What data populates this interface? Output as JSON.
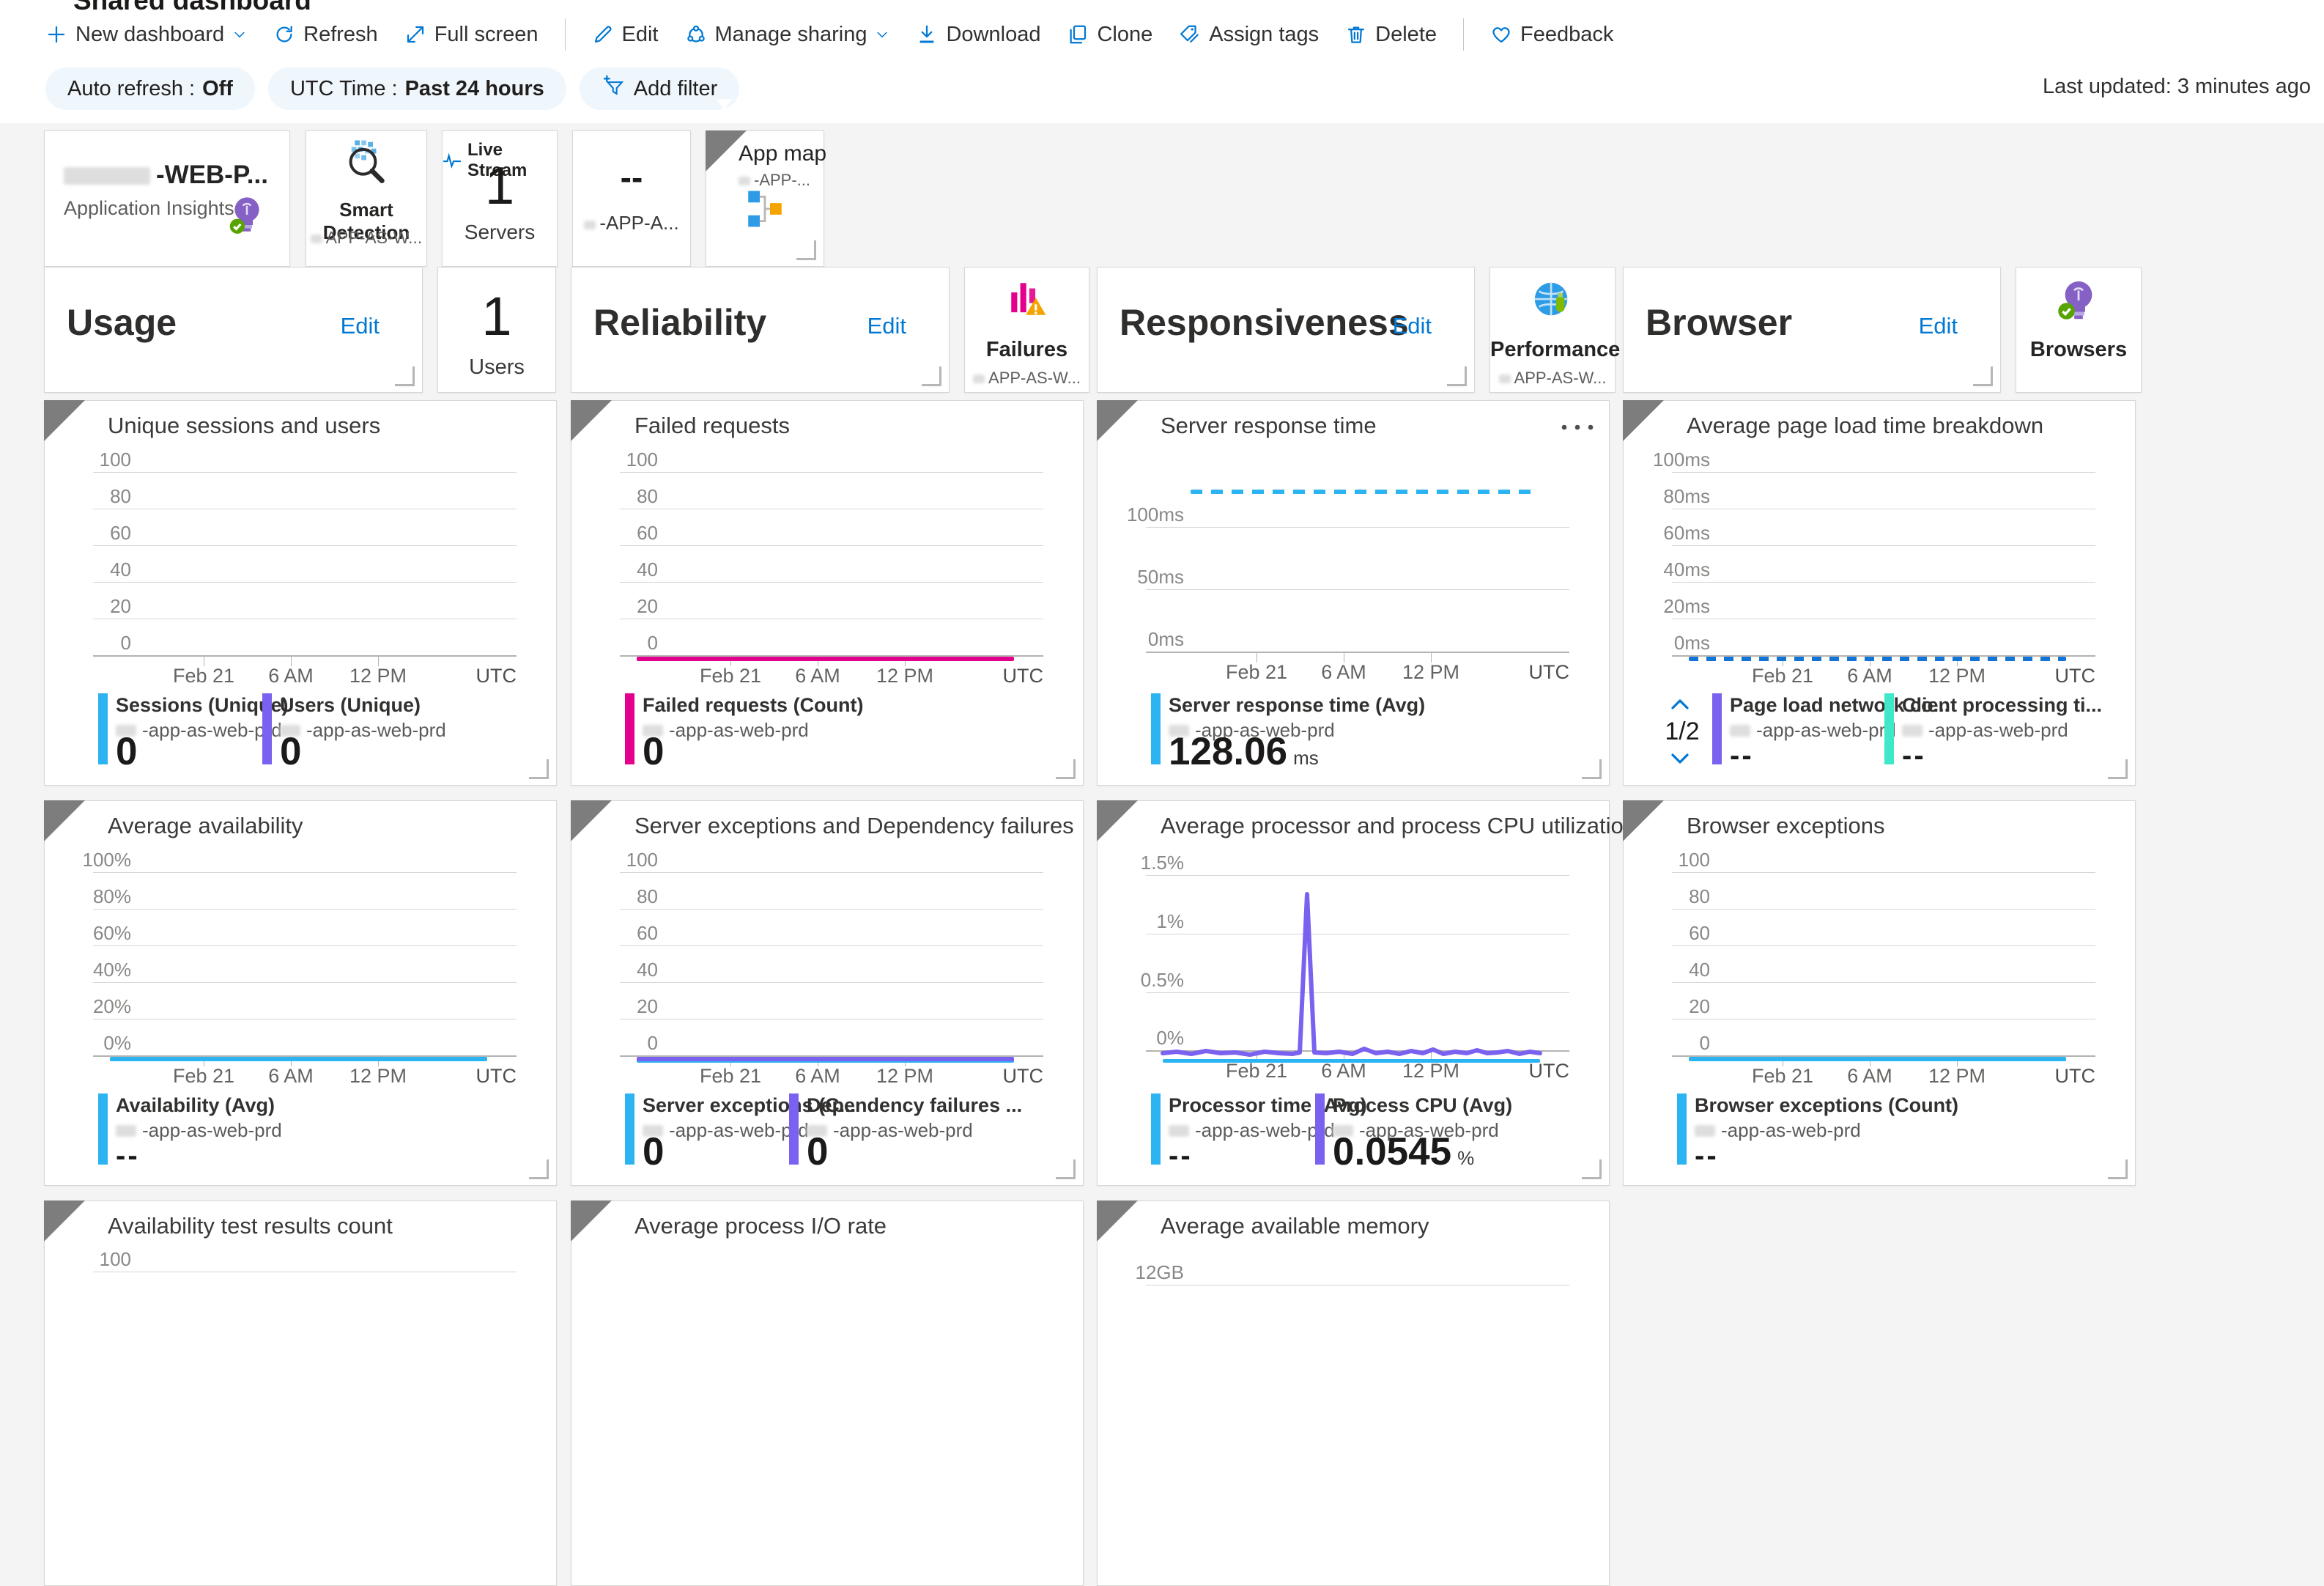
{
  "page": {
    "clipped_title": "Shared dashboard",
    "last_updated": "Last updated: 3 minutes ago"
  },
  "toolbar": {
    "items": [
      {
        "icon": "plus-icon",
        "label": "New dashboard",
        "chevron": true
      },
      {
        "icon": "refresh-icon",
        "label": "Refresh"
      },
      {
        "icon": "fullscreen-icon",
        "label": "Full screen"
      },
      {
        "divider": true
      },
      {
        "icon": "edit-icon",
        "label": "Edit"
      },
      {
        "icon": "share-icon",
        "label": "Manage sharing",
        "chevron": true
      },
      {
        "icon": "download-icon",
        "label": "Download"
      },
      {
        "icon": "clone-icon",
        "label": "Clone"
      },
      {
        "icon": "tags-icon",
        "label": "Assign tags"
      },
      {
        "icon": "delete-icon",
        "label": "Delete"
      },
      {
        "divider": true
      },
      {
        "icon": "heart-icon",
        "label": "Feedback"
      }
    ]
  },
  "filters": {
    "pills": [
      {
        "label": "Auto refresh :",
        "value": "Off"
      },
      {
        "label": "UTC Time :",
        "value": "Past 24 hours"
      }
    ],
    "add_filter_label": "Add filter"
  },
  "info_tiles": [
    {
      "kind": "insights",
      "name": "-WEB-P...",
      "subtitle": "Application Insights",
      "icon": "app-insights-bulb-icon"
    },
    {
      "kind": "smart",
      "title": "Smart Detection",
      "sub": "APP-AS-W...",
      "icon": "smart-detection-icon"
    },
    {
      "kind": "stream",
      "header": "Live Stream",
      "value": "1",
      "label": "Servers",
      "icon": "pulse-icon"
    },
    {
      "kind": "empty",
      "value": "--",
      "sub": "-APP-A..."
    },
    {
      "kind": "map",
      "title": "App map",
      "sub": "-APP-...",
      "icon": "app-map-icon"
    }
  ],
  "headers": [
    {
      "kind": "section",
      "title": "Usage",
      "action": "Edit"
    },
    {
      "kind": "stat",
      "value": "1",
      "label": "Users"
    },
    {
      "kind": "section",
      "title": "Reliability",
      "action": "Edit"
    },
    {
      "kind": "badge",
      "title": "Failures",
      "sub": "APP-AS-W...",
      "icon": "failures-icon"
    },
    {
      "kind": "section",
      "title": "Responsiveness",
      "action": "Edit"
    },
    {
      "kind": "badge",
      "title": "Performance",
      "sub": "APP-AS-W...",
      "icon": "performance-icon"
    },
    {
      "kind": "section",
      "title": "Browser",
      "action": "Edit"
    },
    {
      "kind": "badge",
      "title": "Browsers",
      "sub": "",
      "icon": "browsers-icon"
    }
  ],
  "colors": {
    "accent": "#0078d4",
    "cyan": "#2bb3f2",
    "purple": "#7b61f0",
    "magenta": "#e3008c",
    "teal": "#3fe8c8",
    "dotted_blue": "#1374d8"
  },
  "charts": [
    {
      "title": "Unique sessions and users",
      "scale": "count6",
      "y_ticks": [
        "100",
        "80",
        "60",
        "40",
        "20",
        "0"
      ],
      "x_ticks": [
        "Feb 21",
        "6 AM",
        "12 PM"
      ],
      "x_unit": "UTC",
      "lines": [],
      "legend": [
        {
          "color": "#2bb3f2",
          "label": "Sessions (Unique)",
          "sub": "-app-as-web-prd",
          "value": "0"
        },
        {
          "color": "#7b61f0",
          "label": "Users (Unique)",
          "sub": "-app-as-web-prd",
          "value": "0"
        }
      ]
    },
    {
      "title": "Failed requests",
      "scale": "count6",
      "y_ticks": [
        "100",
        "80",
        "60",
        "40",
        "20",
        "0"
      ],
      "x_ticks": [
        "Feb 21",
        "6 AM",
        "12 PM"
      ],
      "x_unit": "UTC",
      "lines": [
        {
          "kind": "flat",
          "color": "#e3008c"
        }
      ],
      "legend": [
        {
          "color": "#e3008c",
          "label": "Failed requests (Count)",
          "sub": "-app-as-web-prd",
          "value": "0"
        }
      ]
    },
    {
      "title": "Server response time",
      "scale": "ms3",
      "menu": true,
      "y_ticks": [
        "100ms",
        "50ms",
        "0ms"
      ],
      "x_ticks": [
        "Feb 21",
        "6 AM",
        "12 PM"
      ],
      "x_unit": "UTC",
      "lines": [
        {
          "kind": "dotted-high",
          "color": "#2bb3f2"
        }
      ],
      "legend": [
        {
          "color": "#2bb3f2",
          "label": "Server response time (Avg)",
          "sub": "-app-as-web-prd",
          "value": "128.06",
          "unit": "ms"
        }
      ]
    },
    {
      "title": "Average page load time breakdown",
      "scale": "count6",
      "pager": "1/2",
      "y_ticks": [
        "100ms",
        "80ms",
        "60ms",
        "40ms",
        "20ms",
        "0ms"
      ],
      "x_ticks": [
        "Feb 21",
        "6 AM",
        "12 PM"
      ],
      "x_unit": "UTC",
      "lines": [
        {
          "kind": "dotted-zero",
          "color": "#1374d8"
        }
      ],
      "legend": [
        {
          "color": "#7b61f0",
          "label": "Page load network co...",
          "sub": "-app-as-web-prd",
          "value": "--"
        },
        {
          "color": "#3fe8c8",
          "label": "Client processing ti...",
          "sub": "-app-as-web-prd",
          "value": "--"
        }
      ]
    },
    {
      "title": "Average availability",
      "scale": "count6",
      "y_ticks": [
        "100%",
        "80%",
        "60%",
        "40%",
        "20%",
        "0%"
      ],
      "x_ticks": [
        "Feb 21",
        "6 AM",
        "12 PM"
      ],
      "x_unit": "UTC",
      "lines": [
        {
          "kind": "flat",
          "color": "#2bb3f2"
        }
      ],
      "legend": [
        {
          "color": "#2bb3f2",
          "label": "Availability (Avg)",
          "sub": "-app-as-web-prd",
          "value": "--"
        }
      ]
    },
    {
      "title": "Server exceptions and Dependency failures",
      "scale": "count6",
      "y_ticks": [
        "100",
        "80",
        "60",
        "40",
        "20",
        "0"
      ],
      "x_ticks": [
        "Feb 21",
        "6 AM",
        "12 PM"
      ],
      "x_unit": "UTC",
      "lines": [
        {
          "kind": "flat-under",
          "color": "#2bb3f2"
        },
        {
          "kind": "flat",
          "color": "#7b61f0"
        }
      ],
      "legend": [
        {
          "color": "#2bb3f2",
          "label": "Server exceptions (C...",
          "sub": "-app-as-web-prd",
          "value": "0"
        },
        {
          "color": "#7b61f0",
          "label": "Dependency failures ...",
          "sub": "-app-as-web-prd",
          "value": "0"
        }
      ]
    },
    {
      "title": "Average processor and process CPU utilization",
      "scale": "pct4",
      "y_ticks": [
        "1.5%",
        "1%",
        "0.5%",
        "0%"
      ],
      "x_ticks": [
        "Feb 21",
        "6 AM",
        "12 PM"
      ],
      "x_unit": "UTC",
      "lines": [
        {
          "kind": "flat-under",
          "color": "#2bb3f2"
        },
        {
          "kind": "cpu-spike",
          "color": "#7b61f0",
          "spike_peak": "1.35%",
          "spike_near": "4 AM"
        }
      ],
      "legend": [
        {
          "color": "#2bb3f2",
          "label": "Processor time (Avg)",
          "sub": "-app-as-web-prd",
          "value": "--"
        },
        {
          "color": "#7b61f0",
          "label": "Process CPU (Avg)",
          "sub": "-app-as-web-prd",
          "value": "0.0545",
          "unit": "%"
        }
      ]
    },
    {
      "title": "Browser exceptions",
      "scale": "count6",
      "y_ticks": [
        "100",
        "80",
        "60",
        "40",
        "20",
        "0"
      ],
      "x_ticks": [
        "Feb 21",
        "6 AM",
        "12 PM"
      ],
      "x_unit": "UTC",
      "lines": [
        {
          "kind": "flat",
          "color": "#2bb3f2"
        }
      ],
      "legend": [
        {
          "color": "#2bb3f2",
          "label": "Browser exceptions (Count)",
          "sub": "-app-as-web-prd",
          "value": "--"
        }
      ]
    },
    {
      "title": "Availability test results count",
      "scale": "clip100",
      "y_ticks": [
        "100"
      ],
      "clip": true,
      "lines": [],
      "legend": []
    },
    {
      "title": "Average process I/O rate",
      "scale": "clipnone",
      "y_ticks": [],
      "clip": true,
      "lines": [],
      "legend": []
    },
    {
      "title": "Average available memory",
      "scale": "clipgb",
      "y_ticks": [
        "12GB"
      ],
      "clip": true,
      "lines": [],
      "legend": []
    }
  ]
}
